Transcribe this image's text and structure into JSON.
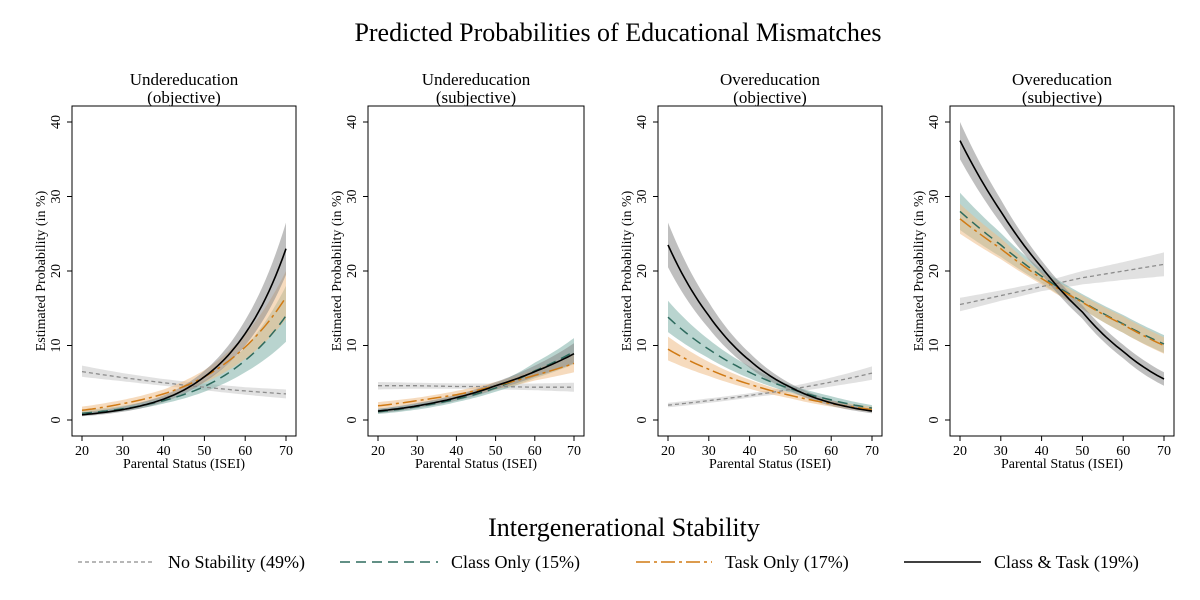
{
  "title": "Predicted Probabilities of Educational Mismatches",
  "legend_title": "Intergenerational Stability",
  "series_styles": [
    {
      "key": "no_stability",
      "label": "No Stability (49%)",
      "color": "#8c8c8c",
      "band": "#c8c8c8",
      "dash": "4 3",
      "stroke_width": 1.3
    },
    {
      "key": "class_only",
      "label": "Class Only (15%)",
      "color": "#2e6b5e",
      "band": "#7fb0a8",
      "dash": "10 6",
      "stroke_width": 1.5
    },
    {
      "key": "task_only",
      "label": "Task Only (17%)",
      "color": "#d07a14",
      "band": "#eebd88",
      "dash": "14 4 3 4",
      "stroke_width": 1.5
    },
    {
      "key": "class_task",
      "label": "Class & Task (19%)",
      "color": "#000000",
      "band": "#8a8a8a",
      "dash": "",
      "stroke_width": 1.6
    }
  ],
  "chart_data": [
    {
      "type": "line",
      "title": "Undereducation",
      "subtitle": "(objective)",
      "xlabel": "Parental Status (ISEI)",
      "ylabel": "Estimated Probability (in %)",
      "xlim": [
        20,
        70
      ],
      "ylim": [
        0,
        40
      ],
      "xticks": [
        20,
        30,
        40,
        50,
        60,
        70
      ],
      "yticks": [
        0,
        10,
        20,
        30,
        40
      ],
      "x": [
        20,
        30,
        40,
        50,
        60,
        70
      ],
      "series": [
        {
          "name": "No Stability (49%)",
          "values": [
            6.5,
            5.7,
            5.0,
            4.4,
            3.9,
            3.5
          ],
          "lower": [
            5.8,
            5.2,
            4.6,
            4.0,
            3.4,
            2.9
          ],
          "upper": [
            7.3,
            6.3,
            5.5,
            4.9,
            4.4,
            4.1
          ]
        },
        {
          "name": "Class Only (15%)",
          "values": [
            0.9,
            1.5,
            2.6,
            4.5,
            8.0,
            14.0
          ],
          "lower": [
            0.6,
            1.2,
            2.2,
            3.8,
            6.4,
            10.5
          ],
          "upper": [
            1.3,
            1.9,
            3.1,
            5.3,
            9.8,
            18.0
          ]
        },
        {
          "name": "Task Only (17%)",
          "values": [
            1.3,
            2.2,
            3.5,
            5.8,
            9.8,
            16.5
          ],
          "lower": [
            0.9,
            1.8,
            3.0,
            5.0,
            8.2,
            13.5
          ],
          "upper": [
            1.8,
            2.7,
            4.1,
            6.7,
            11.5,
            20.0
          ]
        },
        {
          "name": "Class & Task (19%)",
          "values": [
            0.7,
            1.4,
            2.8,
            5.8,
            11.6,
            23.0
          ],
          "lower": [
            0.5,
            1.1,
            2.4,
            5.1,
            10.0,
            19.5
          ],
          "upper": [
            1.0,
            1.8,
            3.3,
            6.6,
            13.4,
            26.5
          ]
        }
      ]
    },
    {
      "type": "line",
      "title": "Undereducation",
      "subtitle": "(subjective)",
      "xlabel": "Parental Status (ISEI)",
      "ylabel": "Estimated Probability (in %)",
      "xlim": [
        20,
        70
      ],
      "ylim": [
        0,
        40
      ],
      "xticks": [
        20,
        30,
        40,
        50,
        60,
        70
      ],
      "yticks": [
        0,
        10,
        20,
        30,
        40
      ],
      "x": [
        20,
        30,
        40,
        50,
        60,
        70
      ],
      "series": [
        {
          "name": "No Stability (49%)",
          "values": [
            4.6,
            4.6,
            4.5,
            4.5,
            4.4,
            4.4
          ],
          "lower": [
            4.1,
            4.2,
            4.2,
            4.1,
            4.0,
            3.8
          ],
          "upper": [
            5.1,
            5.0,
            4.9,
            4.9,
            4.9,
            5.0
          ]
        },
        {
          "name": "Class Only (15%)",
          "values": [
            1.1,
            1.8,
            2.8,
            4.3,
            6.6,
            9.2
          ],
          "lower": [
            0.8,
            1.4,
            2.4,
            3.8,
            5.6,
            7.5
          ],
          "upper": [
            1.5,
            2.2,
            3.3,
            4.9,
            7.7,
            11.0
          ]
        },
        {
          "name": "Task Only (17%)",
          "values": [
            1.9,
            2.6,
            3.4,
            4.6,
            6.0,
            7.6
          ],
          "lower": [
            1.5,
            2.2,
            3.0,
            4.1,
            5.3,
            6.4
          ],
          "upper": [
            2.4,
            3.0,
            3.9,
            5.1,
            6.8,
            8.9
          ]
        },
        {
          "name": "Class & Task (19%)",
          "values": [
            1.2,
            1.9,
            3.0,
            4.6,
            6.5,
            8.9
          ],
          "lower": [
            0.9,
            1.6,
            2.6,
            4.1,
            5.8,
            7.6
          ],
          "upper": [
            1.5,
            2.3,
            3.4,
            5.1,
            7.3,
            10.3
          ]
        }
      ]
    },
    {
      "type": "line",
      "title": "Overeducation",
      "subtitle": "(objective)",
      "xlabel": "Parental Status (ISEI)",
      "ylabel": "Estimated Probability (in %)",
      "xlim": [
        20,
        70
      ],
      "ylim": [
        0,
        40
      ],
      "xticks": [
        20,
        30,
        40,
        50,
        60,
        70
      ],
      "yticks": [
        0,
        10,
        20,
        30,
        40
      ],
      "x": [
        20,
        30,
        40,
        50,
        60,
        70
      ],
      "series": [
        {
          "name": "No Stability (49%)",
          "values": [
            2.0,
            2.6,
            3.3,
            4.1,
            5.1,
            6.3
          ],
          "lower": [
            1.7,
            2.3,
            3.0,
            3.7,
            4.5,
            5.4
          ],
          "upper": [
            2.3,
            2.9,
            3.6,
            4.5,
            5.7,
            7.2
          ]
        },
        {
          "name": "Class Only (15%)",
          "values": [
            13.8,
            9.5,
            6.4,
            4.2,
            2.7,
            1.6
          ],
          "lower": [
            11.8,
            8.3,
            5.6,
            3.7,
            2.2,
            1.2
          ],
          "upper": [
            16.0,
            10.8,
            7.2,
            4.7,
            3.2,
            2.0
          ]
        },
        {
          "name": "Task Only (17%)",
          "values": [
            9.5,
            6.8,
            4.8,
            3.3,
            2.2,
            1.4
          ],
          "lower": [
            8.0,
            5.9,
            4.2,
            2.9,
            1.8,
            1.1
          ],
          "upper": [
            11.2,
            7.8,
            5.4,
            3.7,
            2.6,
            1.8
          ]
        },
        {
          "name": "Class & Task (19%)",
          "values": [
            23.5,
            14.0,
            8.0,
            4.4,
            2.3,
            1.2
          ],
          "lower": [
            20.5,
            12.3,
            7.0,
            3.9,
            1.9,
            0.9
          ],
          "upper": [
            26.5,
            15.8,
            9.0,
            4.9,
            2.7,
            1.5
          ]
        }
      ]
    },
    {
      "type": "line",
      "title": "Overeducation",
      "subtitle": "(subjective)",
      "xlabel": "Parental Status (ISEI)",
      "ylabel": "Estimated Probability (in %)",
      "xlim": [
        20,
        70
      ],
      "ylim": [
        0,
        40
      ],
      "xticks": [
        20,
        30,
        40,
        50,
        60,
        70
      ],
      "yticks": [
        0,
        10,
        20,
        30,
        40
      ],
      "x": [
        20,
        30,
        40,
        50,
        60,
        70
      ],
      "series": [
        {
          "name": "No Stability (49%)",
          "values": [
            15.5,
            16.7,
            17.9,
            19.1,
            20.0,
            20.9
          ],
          "lower": [
            14.6,
            16.0,
            17.3,
            18.2,
            18.8,
            19.3
          ],
          "upper": [
            16.4,
            17.4,
            18.5,
            20.0,
            21.2,
            22.5
          ]
        },
        {
          "name": "Class Only (15%)",
          "values": [
            28.0,
            23.5,
            19.3,
            15.9,
            12.9,
            10.2
          ],
          "lower": [
            25.5,
            21.9,
            18.4,
            14.9,
            11.7,
            9.0
          ],
          "upper": [
            30.5,
            25.1,
            20.2,
            16.9,
            14.1,
            11.4
          ]
        },
        {
          "name": "Task Only (17%)",
          "values": [
            27.0,
            23.0,
            19.0,
            15.8,
            12.8,
            10.0
          ],
          "lower": [
            25.0,
            21.6,
            18.2,
            14.9,
            11.7,
            8.9
          ],
          "upper": [
            29.0,
            24.4,
            19.8,
            16.7,
            13.9,
            11.1
          ]
        },
        {
          "name": "Class & Task (19%)",
          "values": [
            37.5,
            28.0,
            20.5,
            14.5,
            9.2,
            5.5
          ],
          "lower": [
            35.0,
            26.4,
            19.6,
            13.6,
            8.3,
            4.6
          ],
          "upper": [
            40.0,
            29.6,
            21.4,
            15.4,
            10.1,
            6.4
          ]
        }
      ]
    }
  ]
}
